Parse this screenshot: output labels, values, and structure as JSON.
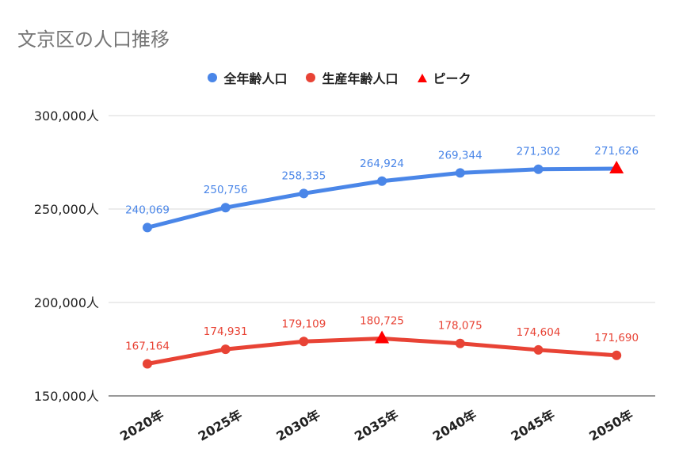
{
  "chart_data": {
    "type": "line",
    "title": "文京区の人口推移",
    "categories": [
      "2020年",
      "2025年",
      "2030年",
      "2035年",
      "2040年",
      "2045年",
      "2050年"
    ],
    "y_ticks": [
      "150,000人",
      "200,000人",
      "250,000人",
      "300,000人"
    ],
    "y_tick_values": [
      150000,
      200000,
      250000,
      300000
    ],
    "ylim": [
      150000,
      300000
    ],
    "grid": true,
    "legend_position": "top",
    "series": [
      {
        "name": "全年齢人口",
        "color": "#4a86e8",
        "values": [
          240069,
          250756,
          258335,
          264924,
          269344,
          271302,
          271626
        ],
        "labels": [
          "240,069",
          "250,756",
          "258,335",
          "264,924",
          "269,344",
          "271,302",
          "271,626"
        ],
        "peak_index": 6
      },
      {
        "name": "生産年齢人口",
        "color": "#e84335",
        "values": [
          167164,
          174931,
          179109,
          180725,
          178075,
          174604,
          171690
        ],
        "labels": [
          "167,164",
          "174,931",
          "179,109",
          "180,725",
          "178,075",
          "174,604",
          "171,690"
        ],
        "peak_index": 3
      }
    ],
    "peak_legend": "ピーク",
    "peak_color": "#ff0000"
  }
}
